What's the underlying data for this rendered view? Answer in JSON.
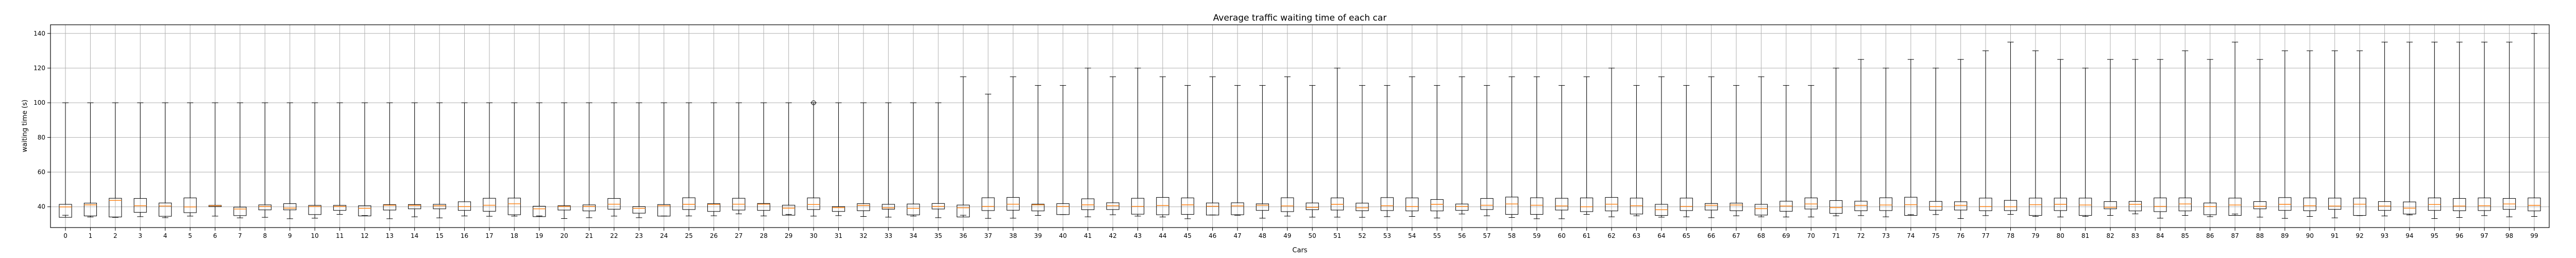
{
  "chart_data": {
    "type": "box",
    "title": "Average traffic waiting time of each car",
    "xlabel": "Cars",
    "ylabel": "waiting time (s)",
    "ylim": [
      28,
      145
    ],
    "yticks": [
      40,
      60,
      80,
      100,
      120,
      140
    ],
    "grid": true,
    "colors": {
      "box": "#000000",
      "median": "#ff7f0e",
      "grid": "#b0b0b0"
    },
    "categories": [
      "0",
      "1",
      "2",
      "3",
      "4",
      "5",
      "6",
      "7",
      "8",
      "9",
      "10",
      "11",
      "12",
      "13",
      "14",
      "15",
      "16",
      "17",
      "18",
      "19",
      "20",
      "21",
      "22",
      "23",
      "24",
      "25",
      "26",
      "27",
      "28",
      "29",
      "30",
      "31",
      "32",
      "33",
      "34",
      "35",
      "36",
      "37",
      "38",
      "39",
      "40",
      "41",
      "42",
      "43",
      "44",
      "45",
      "46",
      "47",
      "48",
      "49",
      "50",
      "51",
      "52",
      "53",
      "54",
      "55",
      "56",
      "57",
      "58",
      "59",
      "60",
      "61",
      "62",
      "63",
      "64",
      "65",
      "66",
      "67",
      "68",
      "69",
      "70",
      "71",
      "72",
      "73",
      "74",
      "75",
      "76",
      "77",
      "78",
      "79",
      "80",
      "81",
      "82",
      "83",
      "84",
      "85",
      "86",
      "87",
      "88",
      "89",
      "90",
      "91",
      "92",
      "93",
      "94",
      "95",
      "96",
      "97",
      "98",
      "99"
    ],
    "whisker_high": [
      100,
      100,
      100,
      100,
      100,
      100,
      100,
      100,
      100,
      100,
      100,
      100,
      100,
      100,
      100,
      100,
      100,
      100,
      100,
      100,
      100,
      100,
      100,
      100,
      100,
      100,
      100,
      100,
      100,
      100,
      100,
      100,
      100,
      100,
      100,
      100,
      115,
      105,
      115,
      110,
      110,
      120,
      115,
      120,
      115,
      110,
      115,
      110,
      110,
      115,
      110,
      120,
      110,
      110,
      115,
      110,
      115,
      110,
      115,
      115,
      110,
      115,
      120,
      110,
      115,
      110,
      115,
      110,
      115,
      110,
      110,
      120,
      125,
      120,
      125,
      120,
      125,
      130,
      135,
      130,
      125,
      120,
      125,
      125,
      125,
      130,
      125,
      135,
      125,
      130,
      130,
      130,
      130,
      135,
      135,
      135,
      135,
      135,
      135,
      140
    ],
    "outliers": [
      [],
      [],
      [],
      [],
      [],
      [],
      [],
      [],
      [],
      [],
      [],
      [],
      [],
      [],
      [],
      [],
      [],
      [],
      [],
      [],
      [],
      [],
      [],
      [],
      [],
      [],
      [],
      [],
      [],
      [],
      [
        100
      ],
      [],
      [],
      [],
      [],
      [],
      [],
      [],
      [],
      [],
      [],
      [],
      [],
      [],
      [],
      [],
      [],
      [],
      [],
      [],
      [],
      [],
      [],
      [],
      [],
      [],
      [],
      [],
      [],
      [],
      [],
      [],
      [],
      [],
      [],
      [],
      [],
      [],
      [],
      [],
      [],
      [],
      [],
      [],
      [],
      [],
      [],
      [],
      [],
      [],
      [],
      [],
      [],
      [],
      [],
      [],
      [],
      [],
      [],
      [],
      [],
      [],
      [],
      [],
      [],
      [],
      [],
      [],
      [],
      []
    ],
    "box_data": [
      [
        33.9,
        41.4,
        39.9,
        35.1
      ],
      [
        34.7,
        42.1,
        41.1,
        34.1
      ],
      [
        34.1,
        44.9,
        43.7,
        33.9
      ],
      [
        36.8,
        44.8,
        40.6,
        34.3
      ],
      [
        34.5,
        42.2,
        40.4,
        33.7
      ],
      [
        36.6,
        45.1,
        39.9,
        34.6
      ],
      [
        40.1,
        40.8,
        40.6,
        34.6
      ],
      [
        34.9,
        39.8,
        38.7,
        33.6
      ],
      [
        38.2,
        41.1,
        40.2,
        33.9
      ],
      [
        38.2,
        41.8,
        39.2,
        33.1
      ],
      [
        35.5,
        40.8,
        40.2,
        33.4
      ],
      [
        37.9,
        40.8,
        40.2,
        35.6
      ],
      [
        34.7,
        40.6,
        39.1,
        34.9
      ],
      [
        38.1,
        41.2,
        40.9,
        33.1
      ],
      [
        38.8,
        41.3,
        40.8,
        34.2
      ],
      [
        38.8,
        41.4,
        40.6,
        33.6
      ],
      [
        37.9,
        42.9,
        40.1,
        34.7
      ],
      [
        37.4,
        44.9,
        40.9,
        34.5
      ],
      [
        35.4,
        45.0,
        41.7,
        34.6
      ],
      [
        34.3,
        40.3,
        38.8,
        34.7
      ],
      [
        38.1,
        40.6,
        40.2,
        33.2
      ],
      [
        37.6,
        41.1,
        40.2,
        33.7
      ],
      [
        38.6,
        44.8,
        41.5,
        34.6
      ],
      [
        36.3,
        40.1,
        39.1,
        33.7
      ],
      [
        34.6,
        41.3,
        40.6,
        34.7
      ],
      [
        38.4,
        45.2,
        41.4,
        34.7
      ],
      [
        37.3,
        41.8,
        41.3,
        34.8
      ],
      [
        38.1,
        44.9,
        41.5,
        35.9
      ],
      [
        37.9,
        41.9,
        41.5,
        34.7
      ],
      [
        35.1,
        40.9,
        39.2,
        35.6
      ],
      [
        38.4,
        45.1,
        41.3,
        34.6
      ],
      [
        37.3,
        40.1,
        39.5,
        34.9
      ],
      [
        37.7,
        41.8,
        40.8,
        34.4
      ],
      [
        38.6,
        41.4,
        39.4,
        34.0
      ],
      [
        35.3,
        41.6,
        39.1,
        34.6
      ],
      [
        38.7,
        41.9,
        40.2,
        33.7
      ],
      [
        34.1,
        41.0,
        39.4,
        35.1
      ],
      [
        37.8,
        45.2,
        40.2,
        33.3
      ],
      [
        38.0,
        45.4,
        41.5,
        33.4
      ],
      [
        37.6,
        41.5,
        41.1,
        35.0
      ],
      [
        35.5,
        41.8,
        40.2,
        35.5
      ],
      [
        38.3,
        44.6,
        41.1,
        34.2
      ],
      [
        38.4,
        42.3,
        40.6,
        35.4
      ],
      [
        35.7,
        44.9,
        40.2,
        34.6
      ],
      [
        35.4,
        45.4,
        40.7,
        34.1
      ],
      [
        35.6,
        45.1,
        41.1,
        33.1
      ],
      [
        35.2,
        42.2,
        40.3,
        35.3
      ],
      [
        35.4,
        42.3,
        40.5,
        35.1
      ],
      [
        37.9,
        41.7,
        40.9,
        33.4
      ],
      [
        37.2,
        45.2,
        40.5,
        34.6
      ],
      [
        38.3,
        42.2,
        39.6,
        34.0
      ],
      [
        38.1,
        45.1,
        41.4,
        34.0
      ],
      [
        37.7,
        42.1,
        39.4,
        33.9
      ],
      [
        37.8,
        45.3,
        40.6,
        34.3
      ],
      [
        37.6,
        45.1,
        40.1,
        34.4
      ],
      [
        37.6,
        44.2,
        41.4,
        33.5
      ],
      [
        37.9,
        41.6,
        40.2,
        35.8
      ],
      [
        38.4,
        44.8,
        40.9,
        34.8
      ],
      [
        35.6,
        45.6,
        41.6,
        33.8
      ],
      [
        35.6,
        45.2,
        40.9,
        33.1
      ],
      [
        38.1,
        44.9,
        40.5,
        33.1
      ],
      [
        37.2,
        45.1,
        40.0,
        35.6
      ],
      [
        37.6,
        45.4,
        41.5,
        34.2
      ],
      [
        35.8,
        45.0,
        40.6,
        34.8
      ],
      [
        35.0,
        41.4,
        38.3,
        34.0
      ],
      [
        37.8,
        45.0,
        40.2,
        34.2
      ],
      [
        38.1,
        41.9,
        40.9,
        33.7
      ],
      [
        37.7,
        42.1,
        41.0,
        34.8
      ],
      [
        35.2,
        41.4,
        38.9,
        34.2
      ],
      [
        37.4,
        43.2,
        40.4,
        34.1
      ],
      [
        38.7,
        45.1,
        41.6,
        34.1
      ],
      [
        36.2,
        43.6,
        39.5,
        34.8
      ],
      [
        37.7,
        43.2,
        40.8,
        34.9
      ],
      [
        37.8,
        45.2,
        41.0,
        34.2
      ],
      [
        35.0,
        45.5,
        41.2,
        35.5
      ],
      [
        38.0,
        43.1,
        40.1,
        35.5
      ],
      [
        38.1,
        42.9,
        40.8,
        33.2
      ],
      [
        37.7,
        45.0,
        40.1,
        34.9
      ],
      [
        37.8,
        43.7,
        40.0,
        35.6
      ],
      [
        35.0,
        45.0,
        41.2,
        34.4
      ],
      [
        37.8,
        45.0,
        41.4,
        34.1
      ],
      [
        35.0,
        45.0,
        41.0,
        34.4
      ],
      [
        38.8,
        43.0,
        39.7,
        35.0
      ],
      [
        37.6,
        43.1,
        41.4,
        35.9
      ],
      [
        37.2,
        45.1,
        40.2,
        33.4
      ],
      [
        37.6,
        45.1,
        41.6,
        35.0
      ],
      [
        35.4,
        42.2,
        40.1,
        34.3
      ],
      [
        35.0,
        45.0,
        41.0,
        35.8
      ],
      [
        38.8,
        43.0,
        40.3,
        34.0
      ],
      [
        37.9,
        45.3,
        41.4,
        33.3
      ],
      [
        37.7,
        45.1,
        40.6,
        34.4
      ],
      [
        38.5,
        45.0,
        40.4,
        33.6
      ],
      [
        35.0,
        45.0,
        41.5,
        34.9
      ],
      [
        37.9,
        43.0,
        40.4,
        34.7
      ],
      [
        35.8,
        42.8,
        39.2,
        35.3
      ],
      [
        37.9,
        45.1,
        41.3,
        33.2
      ],
      [
        37.7,
        44.8,
        40.4,
        33.8
      ],
      [
        37.8,
        45.1,
        40.6,
        34.9
      ],
      [
        38.5,
        44.8,
        41.6,
        34.2
      ],
      [
        37.6,
        45.1,
        40.8,
        34.4
      ]
    ]
  }
}
